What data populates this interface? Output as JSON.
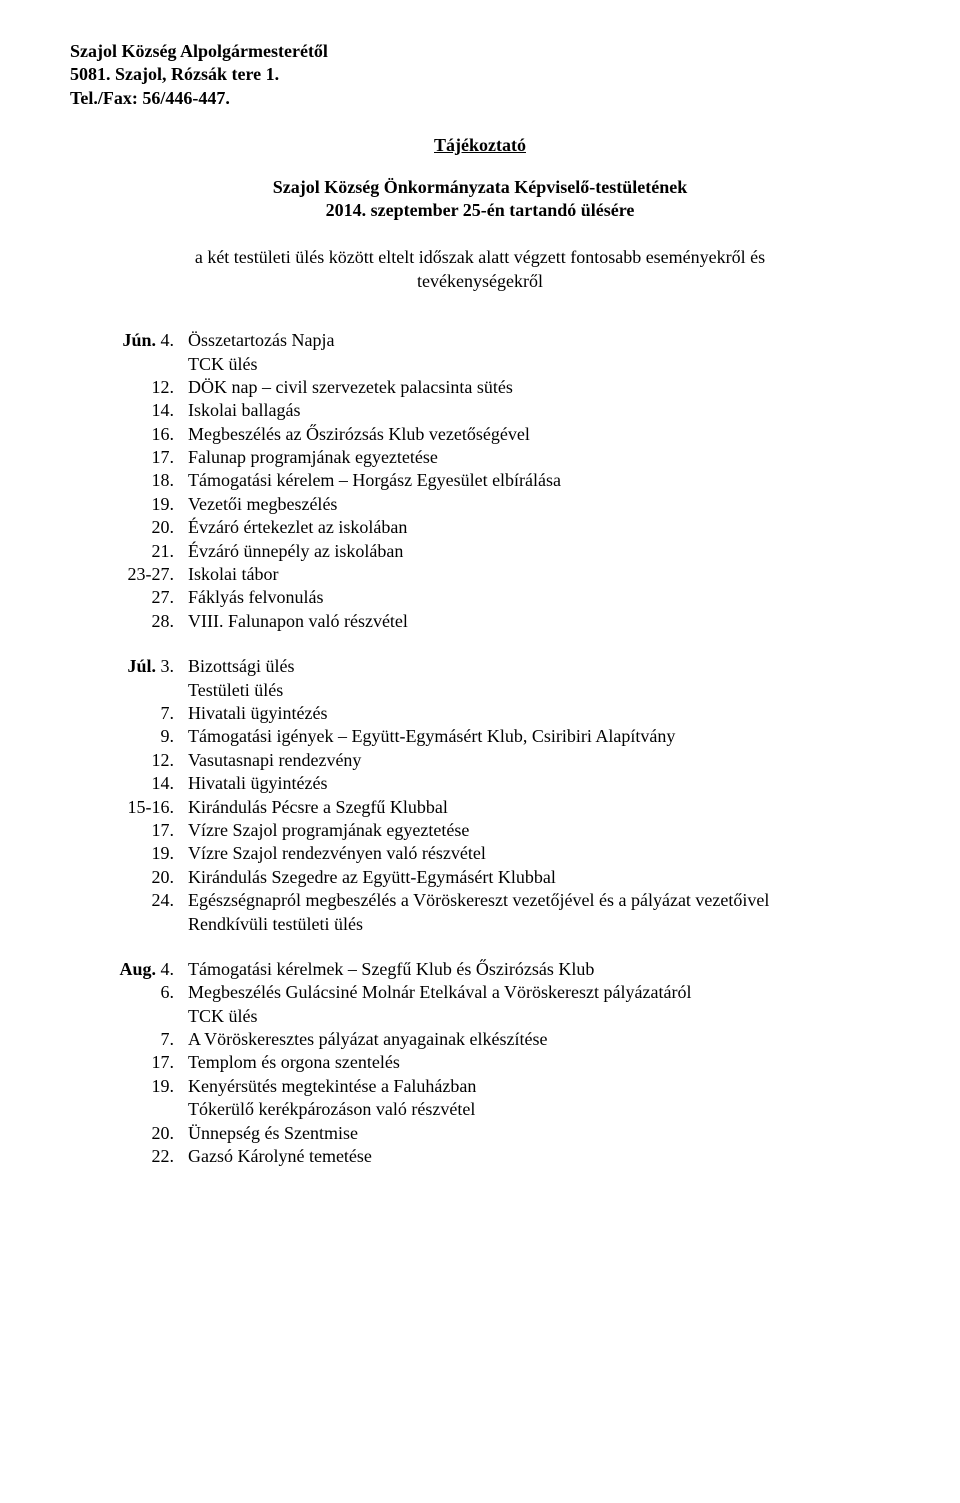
{
  "header": {
    "line1": "Szajol Község Alpolgármesterétől",
    "line2": "5081. Szajol, Rózsák tere 1.",
    "line3": "Tel./Fax: 56/446-447."
  },
  "title": "Tájékoztató",
  "subtitle_line1": "Szajol Község Önkormányzata Képviselő-testületének",
  "subtitle_line2": "2014. szeptember 25-én tartandó ülésére",
  "intro": "a két testületi ülés között eltelt időszak alatt végzett fontosabb eseményekről és tevékenységekről",
  "months": [
    {
      "label": "Jún.",
      "rows": [
        {
          "day": "4.",
          "text": "Összetartozás Napja",
          "sub": [
            "TCK ülés"
          ]
        },
        {
          "day": "12.",
          "text": "DÖK nap – civil szervezetek palacsinta sütés"
        },
        {
          "day": "14.",
          "text": "Iskolai ballagás"
        },
        {
          "day": "16.",
          "text": "Megbeszélés az Őszirózsás Klub vezetőségével"
        },
        {
          "day": "17.",
          "text": "Falunap programjának egyeztetése"
        },
        {
          "day": "18.",
          "text": "Támogatási kérelem – Horgász Egyesület elbírálása"
        },
        {
          "day": "19.",
          "text": "Vezetői megbeszélés"
        },
        {
          "day": "20.",
          "text": "Évzáró értekezlet az iskolában"
        },
        {
          "day": "21.",
          "text": "Évzáró ünnepély az iskolában"
        },
        {
          "day": "23-27.",
          "text": "Iskolai tábor"
        },
        {
          "day": "27.",
          "text": "Fáklyás felvonulás"
        },
        {
          "day": "28.",
          "text": "VIII. Falunapon való részvétel"
        }
      ]
    },
    {
      "label": "Júl.",
      "rows": [
        {
          "day": "3.",
          "text": "Bizottsági ülés",
          "sub": [
            "Testületi ülés"
          ]
        },
        {
          "day": "7.",
          "text": "Hivatali ügyintézés"
        },
        {
          "day": "9.",
          "text": "Támogatási igények – Együtt-Egymásért Klub, Csiribiri Alapítvány"
        },
        {
          "day": "12.",
          "text": "Vasutasnapi rendezvény"
        },
        {
          "day": "14.",
          "text": "Hivatali ügyintézés"
        },
        {
          "day": "15-16.",
          "text": "Kirándulás Pécsre a Szegfű Klubbal"
        },
        {
          "day": "17.",
          "text": "Vízre Szajol programjának egyeztetése"
        },
        {
          "day": "19.",
          "text": "Vízre Szajol rendezvényen való részvétel"
        },
        {
          "day": "20.",
          "text": "Kirándulás Szegedre az Együtt-Egymásért Klubbal"
        },
        {
          "day": "24.",
          "text": "Egészségnapról megbeszélés a Vöröskereszt vezetőjével és a pályázat vezetőivel",
          "sub": [
            "Rendkívüli testületi ülés"
          ]
        }
      ]
    },
    {
      "label": "Aug.",
      "rows": [
        {
          "day": "4.",
          "text": "Támogatási kérelmek – Szegfű Klub és Őszirózsás Klub"
        },
        {
          "day": "6.",
          "text": "Megbeszélés Gulácsiné Molnár Etelkával a Vöröskereszt pályázatáról",
          "sub": [
            "TCK ülés"
          ]
        },
        {
          "day": "7.",
          "text": "A Vöröskeresztes pályázat anyagainak elkészítése"
        },
        {
          "day": "17.",
          "text": "Templom és orgona szentelés"
        },
        {
          "day": "19.",
          "text": "Kenyérsütés megtekintése a Faluházban",
          "sub": [
            "Tókerülő kerékpározáson való részvétel"
          ]
        },
        {
          "day": "20.",
          "text": "Ünnepség és Szentmise"
        },
        {
          "day": "22.",
          "text": "Gazsó Károlyné temetése"
        }
      ]
    }
  ]
}
